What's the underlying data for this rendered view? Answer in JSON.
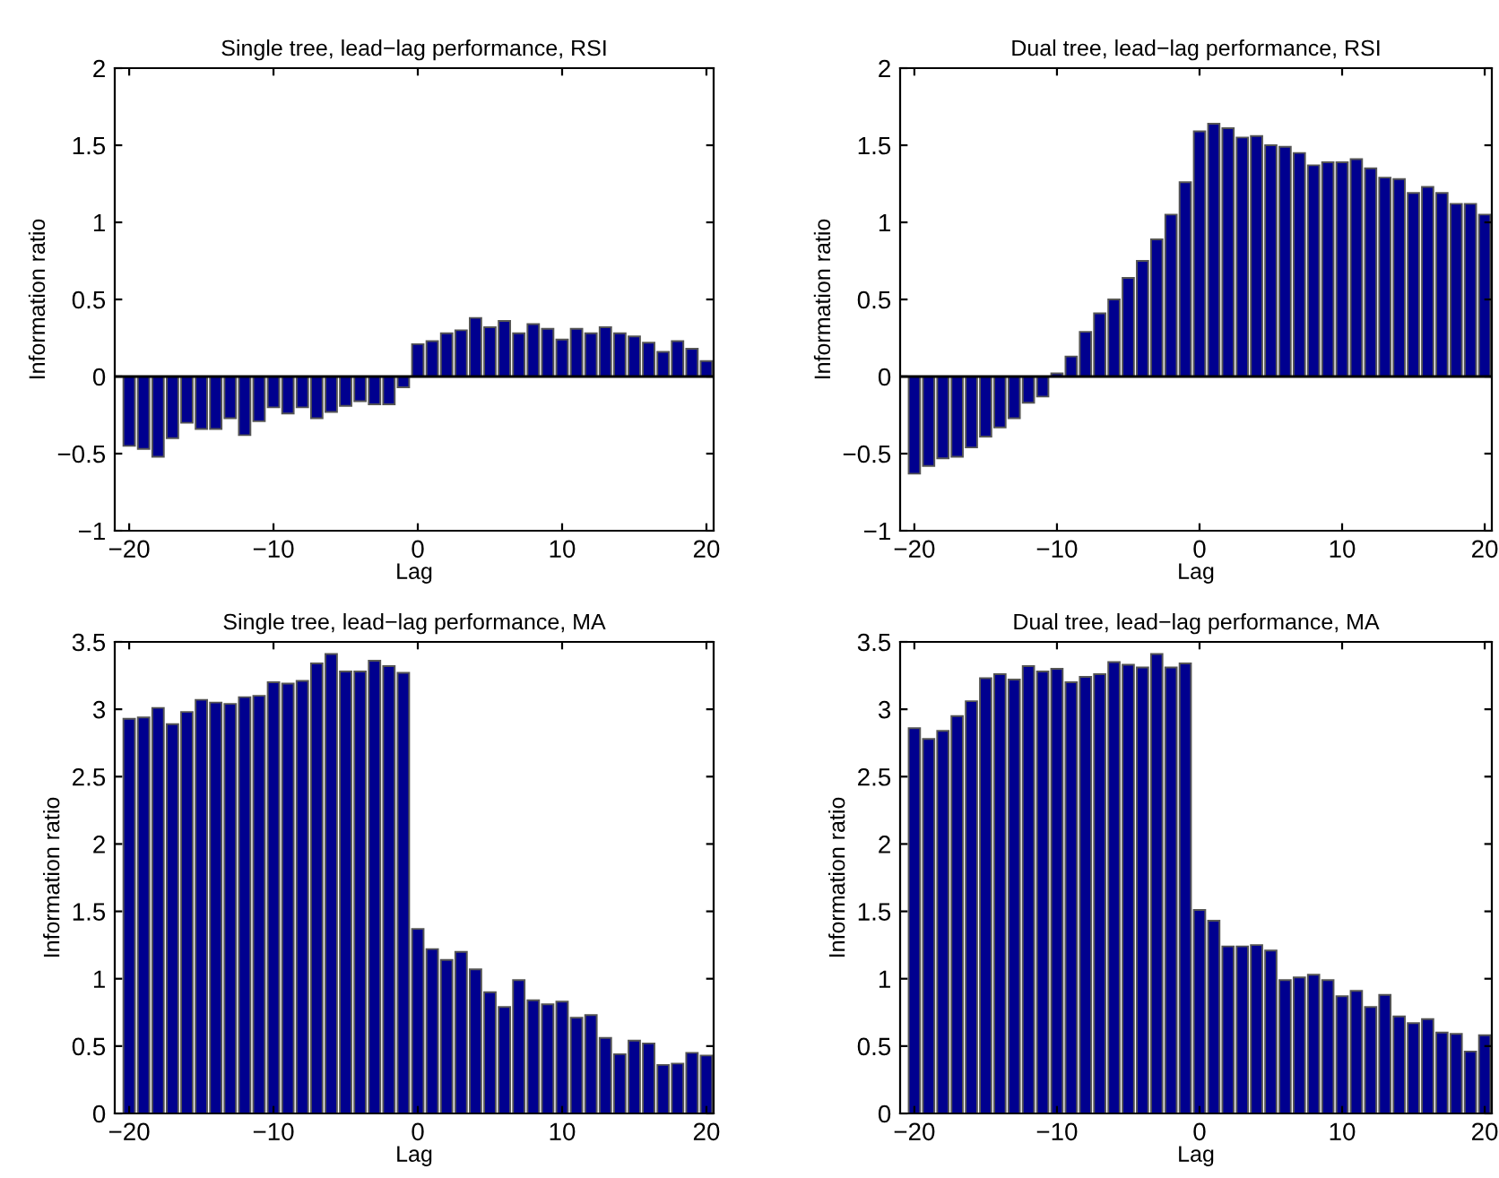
{
  "chart_data": [
    {
      "type": "bar",
      "title": "Single tree, lead−lag performance, RSI",
      "xlabel": "Lag",
      "ylabel": "Information ratio",
      "x": [
        -20,
        -19,
        -18,
        -17,
        -16,
        -15,
        -14,
        -13,
        -12,
        -11,
        -10,
        -9,
        -8,
        -7,
        -6,
        -5,
        -4,
        -3,
        -2,
        -1,
        0,
        1,
        2,
        3,
        4,
        5,
        6,
        7,
        8,
        9,
        10,
        11,
        12,
        13,
        14,
        15,
        16,
        17,
        18,
        19,
        20
      ],
      "values": [
        -0.45,
        -0.47,
        -0.52,
        -0.4,
        -0.3,
        -0.34,
        -0.34,
        -0.27,
        -0.38,
        -0.29,
        -0.2,
        -0.24,
        -0.2,
        -0.27,
        -0.23,
        -0.19,
        -0.16,
        -0.18,
        -0.18,
        -0.07,
        0.21,
        0.23,
        0.28,
        0.3,
        0.38,
        0.32,
        0.36,
        0.28,
        0.34,
        0.31,
        0.24,
        0.31,
        0.28,
        0.32,
        0.28,
        0.26,
        0.22,
        0.16,
        0.23,
        0.18,
        0.1
      ],
      "color": "#00008f",
      "xlim": [
        -21,
        20.5
      ],
      "ylim": [
        -1,
        2
      ],
      "xticks": [
        -20,
        -10,
        0,
        10,
        20
      ],
      "yticks": [
        -1,
        -0.5,
        0,
        0.5,
        1,
        1.5,
        2
      ],
      "ref_lines": [
        {
          "axis": "y",
          "value": 0,
          "color": "#000000"
        }
      ]
    },
    {
      "type": "bar",
      "title": "Dual tree, lead−lag performance, RSI",
      "xlabel": "Lag",
      "ylabel": "Information ratio",
      "x": [
        -20,
        -19,
        -18,
        -17,
        -16,
        -15,
        -14,
        -13,
        -12,
        -11,
        -10,
        -9,
        -8,
        -7,
        -6,
        -5,
        -4,
        -3,
        -2,
        -1,
        0,
        1,
        2,
        3,
        4,
        5,
        6,
        7,
        8,
        9,
        10,
        11,
        12,
        13,
        14,
        15,
        16,
        17,
        18,
        19,
        20
      ],
      "values": [
        -0.63,
        -0.58,
        -0.53,
        -0.52,
        -0.46,
        -0.39,
        -0.33,
        -0.27,
        -0.17,
        -0.13,
        0.02,
        0.13,
        0.29,
        0.41,
        0.5,
        0.64,
        0.75,
        0.89,
        1.05,
        1.26,
        1.59,
        1.64,
        1.61,
        1.55,
        1.56,
        1.5,
        1.49,
        1.45,
        1.37,
        1.39,
        1.39,
        1.41,
        1.35,
        1.29,
        1.28,
        1.19,
        1.23,
        1.19,
        1.12,
        1.12,
        1.05
      ],
      "color": "#00008f",
      "xlim": [
        -21,
        20.5
      ],
      "ylim": [
        -1,
        2
      ],
      "xticks": [
        -20,
        -10,
        0,
        10,
        20
      ],
      "yticks": [
        -1,
        -0.5,
        0,
        0.5,
        1,
        1.5,
        2
      ],
      "ref_lines": [
        {
          "axis": "y",
          "value": 0,
          "color": "#000000"
        }
      ]
    },
    {
      "type": "bar",
      "title": "Single tree, lead−lag performance, MA",
      "xlabel": "Lag",
      "ylabel": "Information ratio",
      "x": [
        -20,
        -19,
        -18,
        -17,
        -16,
        -15,
        -14,
        -13,
        -12,
        -11,
        -10,
        -9,
        -8,
        -7,
        -6,
        -5,
        -4,
        -3,
        -2,
        -1,
        0,
        1,
        2,
        3,
        4,
        5,
        6,
        7,
        8,
        9,
        10,
        11,
        12,
        13,
        14,
        15,
        16,
        17,
        18,
        19,
        20
      ],
      "values": [
        2.93,
        2.94,
        3.01,
        2.89,
        2.98,
        3.07,
        3.05,
        3.04,
        3.09,
        3.1,
        3.2,
        3.19,
        3.21,
        3.34,
        3.41,
        3.28,
        3.28,
        3.36,
        3.32,
        3.27,
        1.37,
        1.22,
        1.14,
        1.2,
        1.07,
        0.9,
        0.79,
        0.99,
        0.84,
        0.81,
        0.83,
        0.71,
        0.73,
        0.56,
        0.44,
        0.54,
        0.52,
        0.36,
        0.37,
        0.45,
        0.43
      ],
      "color": "#00008f",
      "xlim": [
        -21,
        20.5
      ],
      "ylim": [
        0,
        3.5
      ],
      "xticks": [
        -20,
        -10,
        0,
        10,
        20
      ],
      "yticks": [
        0,
        0.5,
        1,
        1.5,
        2,
        2.5,
        3,
        3.5
      ]
    },
    {
      "type": "bar",
      "title": "Dual tree, lead−lag performance, MA",
      "xlabel": "Lag",
      "ylabel": "Information ratio",
      "x": [
        -20,
        -19,
        -18,
        -17,
        -16,
        -15,
        -14,
        -13,
        -12,
        -11,
        -10,
        -9,
        -8,
        -7,
        -6,
        -5,
        -4,
        -3,
        -2,
        -1,
        0,
        1,
        2,
        3,
        4,
        5,
        6,
        7,
        8,
        9,
        10,
        11,
        12,
        13,
        14,
        15,
        16,
        17,
        18,
        19,
        20
      ],
      "values": [
        2.86,
        2.78,
        2.84,
        2.95,
        3.06,
        3.23,
        3.26,
        3.22,
        3.32,
        3.28,
        3.3,
        3.2,
        3.24,
        3.26,
        3.35,
        3.33,
        3.31,
        3.41,
        3.31,
        3.34,
        1.51,
        1.43,
        1.24,
        1.24,
        1.25,
        1.21,
        0.99,
        1.01,
        1.03,
        0.99,
        0.87,
        0.91,
        0.79,
        0.88,
        0.72,
        0.67,
        0.7,
        0.6,
        0.59,
        0.46,
        0.58
      ],
      "color": "#00008f",
      "xlim": [
        -21,
        20.5
      ],
      "ylim": [
        0,
        3.5
      ],
      "xticks": [
        -20,
        -10,
        0,
        10,
        20
      ],
      "yticks": [
        0,
        0.5,
        1,
        1.5,
        2,
        2.5,
        3,
        3.5
      ]
    }
  ]
}
